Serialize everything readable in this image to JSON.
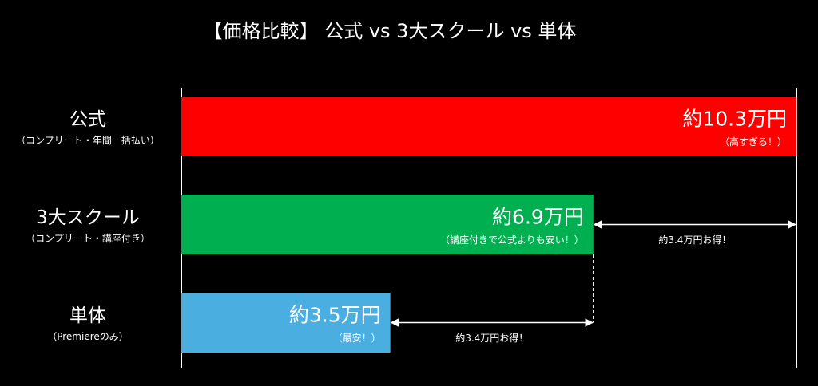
{
  "chart_data": {
    "type": "bar",
    "orientation": "horizontal",
    "title": "【価格比較】 公式 vs 3大スクール vs 単体",
    "categories": [
      "公式",
      "3大スクール",
      "単体"
    ],
    "category_notes": [
      "（コンプリート・年間一括払い）",
      "（コンプリート・講座付き）",
      "（Premiereのみ）"
    ],
    "values": [
      10.3,
      6.9,
      3.5
    ],
    "value_labels": [
      "約10.3万円",
      "約6.9万円",
      "約3.5万円"
    ],
    "value_notes": [
      "（高すぎる！）",
      "（講座付きで公式よりも安い！）",
      "（最安！）"
    ],
    "colors": [
      "#ff0000",
      "#00b050",
      "#4aaee0"
    ],
    "xlim": [
      0,
      10.3
    ],
    "annotations": [
      "約3.4万円お得！",
      "約3.4万円お得！"
    ]
  }
}
